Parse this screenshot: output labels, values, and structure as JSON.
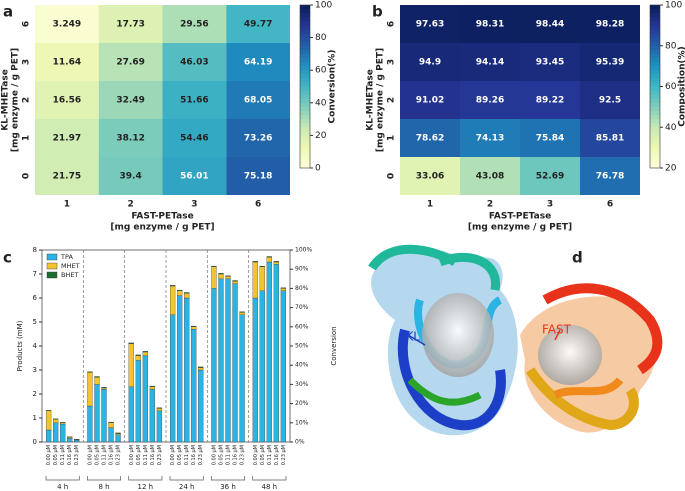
{
  "panel_labels": [
    "a",
    "b",
    "c",
    "d"
  ],
  "chart_data": [
    {
      "type": "heatmap",
      "x_categories": [
        "1",
        "2",
        "3",
        "6"
      ],
      "y_categories": [
        "6",
        "3",
        "2",
        "1",
        "0"
      ],
      "values": [
        [
          3.249,
          17.73,
          29.56,
          49.77
        ],
        [
          11.64,
          27.69,
          46.03,
          64.19
        ],
        [
          16.56,
          32.49,
          51.66,
          68.05
        ],
        [
          21.97,
          38.12,
          54.46,
          73.26
        ],
        [
          21.75,
          39.4,
          56.01,
          75.18
        ]
      ],
      "clim": [
        0,
        100
      ],
      "cticks": [
        0,
        20,
        40,
        60,
        80,
        100
      ],
      "colorbar_label": "Conversion(%)",
      "xlabel": [
        "FAST-PETase",
        "[mg enzyme / g PET]"
      ],
      "ylabel": [
        "KL-MHETase",
        "[mg enzyme / g PET]"
      ],
      "colormap": [
        "#ffffd9",
        "#edf8b1",
        "#c7e9b4",
        "#7fcdbb",
        "#41b6c4",
        "#1d91c0",
        "#225ea8",
        "#253494",
        "#081d58"
      ]
    },
    {
      "type": "heatmap",
      "x_categories": [
        "1",
        "2",
        "3",
        "6"
      ],
      "y_categories": [
        "6",
        "3",
        "2",
        "1",
        "0"
      ],
      "values": [
        [
          97.63,
          98.31,
          98.44,
          98.28
        ],
        [
          94.9,
          94.14,
          93.45,
          95.39
        ],
        [
          91.02,
          89.26,
          89.22,
          92.5
        ],
        [
          78.62,
          74.13,
          75.84,
          85.81
        ],
        [
          33.06,
          43.08,
          52.69,
          76.78
        ]
      ],
      "clim": [
        20,
        100
      ],
      "cticks": [
        20,
        40,
        60,
        80,
        100
      ],
      "colorbar_label": "Composition(%)",
      "xlabel": [
        "FAST-PETase",
        "[mg enzyme / g PET]"
      ],
      "ylabel": [
        "KL-MHETase",
        "[mg enzyme / g PET]"
      ],
      "colormap": [
        "#ffffd9",
        "#edf8b1",
        "#c7e9b4",
        "#7fcdbb",
        "#41b6c4",
        "#1d91c0",
        "#225ea8",
        "#253494",
        "#081d58"
      ]
    },
    {
      "type": "bar",
      "stacked": true,
      "categories": [
        "0.00 μM",
        "0.05 μM",
        "0.11 μM",
        "0.16 μM",
        "0.23 μM",
        "0.00 μM",
        "0.05 μM",
        "0.11 μM",
        "0.16 μM",
        "0.23 μM",
        "0.00 μM",
        "0.05 μM",
        "0.11 μM",
        "0.16 μM",
        "0.23 μM",
        "0.00 μM",
        "0.05 μM",
        "0.11 μM",
        "0.16 μM",
        "0.23 μM",
        "0.00 μM",
        "0.05 μM",
        "0.11 μM",
        "0.16 μM",
        "0.23 μM",
        "0.00 μM",
        "0.05 μM",
        "0.11 μM",
        "0.16 μM",
        "0.23 μM"
      ],
      "groups": [
        "4 h",
        "8 h",
        "12 h",
        "24 h",
        "36 h",
        "48 h"
      ],
      "series": [
        {
          "name": "TPA",
          "color": "#2ab3e3",
          "values": [
            0.5,
            0.8,
            0.75,
            0.15,
            0.08,
            1.5,
            2.4,
            2.2,
            0.6,
            0.3,
            2.3,
            3.4,
            3.6,
            2.2,
            1.3,
            5.3,
            6.1,
            6.0,
            4.7,
            3.0,
            6.4,
            6.8,
            6.8,
            6.6,
            5.3,
            6.0,
            6.3,
            7.5,
            7.4,
            6.3
          ]
        },
        {
          "name": "MHET",
          "color": "#f4c430",
          "values": [
            0.8,
            0.15,
            0.05,
            0.05,
            0.02,
            1.4,
            0.3,
            0.05,
            0.2,
            0.05,
            1.8,
            0.2,
            0.15,
            0.1,
            0.1,
            1.2,
            0.2,
            0.2,
            0.1,
            0.1,
            0.9,
            0.2,
            0.1,
            0.1,
            0.1,
            1.5,
            1.0,
            0.2,
            0.1,
            0.1
          ]
        },
        {
          "name": "BHET",
          "color": "#1b6e30",
          "values": [
            0.02,
            0.02,
            0.02,
            0.02,
            0.02,
            0.03,
            0.03,
            0.03,
            0.03,
            0.03,
            0.03,
            0.03,
            0.03,
            0.03,
            0.03,
            0.03,
            0.03,
            0.03,
            0.03,
            0.03,
            0.03,
            0.03,
            0.03,
            0.03,
            0.03,
            0.03,
            0.03,
            0.03,
            0.03,
            0.03
          ]
        }
      ],
      "ylim": [
        0,
        8
      ],
      "yticks": [
        0,
        1,
        2,
        3,
        4,
        5,
        6,
        7,
        8
      ],
      "ylabel": "Products (mM)",
      "y2lim": [
        0,
        100
      ],
      "y2ticks": [
        {
          "value": 0,
          "label": "0%"
        },
        {
          "value": 10,
          "label": "10%"
        },
        {
          "value": 20,
          "label": "20%"
        },
        {
          "value": 30,
          "label": "30%"
        },
        {
          "value": 40,
          "label": "40%"
        },
        {
          "value": 50,
          "label": "50%"
        },
        {
          "value": 60,
          "label": "60%"
        },
        {
          "value": 70,
          "label": "70%"
        },
        {
          "value": 80,
          "label": "80%"
        },
        {
          "value": 90,
          "label": "90%"
        },
        {
          "value": 100,
          "label": "100%"
        }
      ],
      "y2label": "Conversion",
      "legend": "upper-left"
    }
  ],
  "structure": {
    "labels": [
      "KL",
      "FAST"
    ]
  }
}
